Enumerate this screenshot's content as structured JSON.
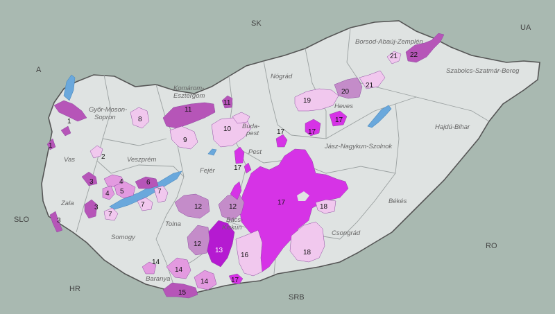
{
  "countries": [
    {
      "id": "sk",
      "label": "SK"
    },
    {
      "id": "ua",
      "label": "UA"
    },
    {
      "id": "a",
      "label": "A"
    },
    {
      "id": "slo",
      "label": "SLO"
    },
    {
      "id": "hr",
      "label": "HR"
    },
    {
      "id": "srb",
      "label": "SRB"
    },
    {
      "id": "ro",
      "label": "RO"
    }
  ],
  "counties": [
    {
      "id": "borsod-1",
      "label": "Borsod-Abaúj-Zemplén"
    },
    {
      "id": "szabolcs",
      "label": "Szabolcs-Szatmár-Bereg"
    },
    {
      "id": "nograd",
      "label": "Nógrád"
    },
    {
      "id": "komarom-1",
      "label": "Komárom-"
    },
    {
      "id": "komarom-2",
      "label": "Esztergom"
    },
    {
      "id": "gyor-1",
      "label": "Győr-Moson-"
    },
    {
      "id": "gyor-2",
      "label": "Sopron"
    },
    {
      "id": "heves",
      "label": "Heves"
    },
    {
      "id": "budapest-1",
      "label": "Buda-"
    },
    {
      "id": "budapest-2",
      "label": "pest"
    },
    {
      "id": "pest",
      "label": "Pest"
    },
    {
      "id": "hajdu",
      "label": "Hajdú-Bihar"
    },
    {
      "id": "jasz",
      "label": "Jász-Nagykun-Szolnok"
    },
    {
      "id": "vas",
      "label": "Vas"
    },
    {
      "id": "veszprem",
      "label": "Veszprém"
    },
    {
      "id": "fejer",
      "label": "Fejér"
    },
    {
      "id": "zala",
      "label": "Zala"
    },
    {
      "id": "bekes",
      "label": "Békés"
    },
    {
      "id": "tolna",
      "label": "Tolna"
    },
    {
      "id": "bacs-1",
      "label": "Bács-"
    },
    {
      "id": "bacs-2",
      "label": "Kiskun"
    },
    {
      "id": "csongrad",
      "label": "Csongrád"
    },
    {
      "id": "somogy",
      "label": "Somogy"
    },
    {
      "id": "baranya",
      "label": "Baranya"
    }
  ],
  "regions": [
    {
      "id": "r1a",
      "label": "1"
    },
    {
      "id": "r1b",
      "label": "1"
    },
    {
      "id": "r2",
      "label": "2"
    },
    {
      "id": "r3a",
      "label": "3"
    },
    {
      "id": "r3b",
      "label": "3"
    },
    {
      "id": "r3c",
      "label": "3"
    },
    {
      "id": "r4a",
      "label": "4"
    },
    {
      "id": "r4b",
      "label": "4"
    },
    {
      "id": "r5",
      "label": "5"
    },
    {
      "id": "r6",
      "label": "6"
    },
    {
      "id": "r7a",
      "label": "7"
    },
    {
      "id": "r7b",
      "label": "7"
    },
    {
      "id": "r7c",
      "label": "7"
    },
    {
      "id": "r8",
      "label": "8"
    },
    {
      "id": "r9",
      "label": "9"
    },
    {
      "id": "r10",
      "label": "10"
    },
    {
      "id": "r11a",
      "label": "11"
    },
    {
      "id": "r11b",
      "label": "11"
    },
    {
      "id": "r12a",
      "label": "12"
    },
    {
      "id": "r12b",
      "label": "12"
    },
    {
      "id": "r12c",
      "label": "12"
    },
    {
      "id": "r13",
      "label": "13"
    },
    {
      "id": "r14a",
      "label": "14"
    },
    {
      "id": "r14b",
      "label": "14"
    },
    {
      "id": "r14c",
      "label": "14"
    },
    {
      "id": "r15",
      "label": "15"
    },
    {
      "id": "r16",
      "label": "16"
    },
    {
      "id": "r17a",
      "label": "17"
    },
    {
      "id": "r17b",
      "label": "17"
    },
    {
      "id": "r17c",
      "label": "17"
    },
    {
      "id": "r17d",
      "label": "17"
    },
    {
      "id": "r17e",
      "label": "17"
    },
    {
      "id": "r17f",
      "label": "17"
    },
    {
      "id": "r18a",
      "label": "18"
    },
    {
      "id": "r18b",
      "label": "18"
    },
    {
      "id": "r19",
      "label": "19"
    },
    {
      "id": "r20",
      "label": "20"
    },
    {
      "id": "r21a",
      "label": "21"
    },
    {
      "id": "r21b",
      "label": "21"
    },
    {
      "id": "r22",
      "label": "22"
    }
  ],
  "colors": {
    "background": "#a9b9b1",
    "hungary": "#dfe3e2",
    "border": "#555555",
    "county_border": "#9aa0a0",
    "water": "#6aa8dc",
    "light_pink": "#f1c8ee",
    "mid_pink": "#e39ae0",
    "mauve": "#c48cc9",
    "purple": "#b655b8",
    "magenta": "#d633e6",
    "dark_magenta": "#b51ad1"
  }
}
